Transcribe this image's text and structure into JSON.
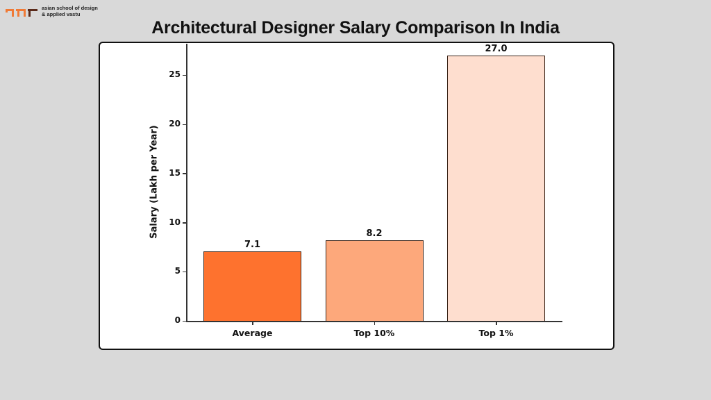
{
  "brand": {
    "line1": "asian school of design",
    "line2": "& applied vastu",
    "logo_colors": [
      "#f07a36",
      "#f07a36",
      "#5a2a1a"
    ]
  },
  "header": {
    "title": "Architectural Designer Salary Comparison In India"
  },
  "chart_data": {
    "type": "bar",
    "title": "Architectural Designer Salary Comparison In India",
    "categories": [
      "Average",
      "Top 10%",
      "Top 1%"
    ],
    "values": [
      7.1,
      8.2,
      27.0
    ],
    "value_labels": [
      "7.1",
      "8.2",
      "27.0"
    ],
    "colors": [
      "#FE722E",
      "#FDA87B",
      "#FEDECF"
    ],
    "xlabel": "",
    "ylabel": "Salary (Lakh per Year)",
    "ylim": [
      0,
      28.2
    ],
    "yticks": [
      0,
      5,
      10,
      15,
      20,
      25
    ],
    "ytick_labels": [
      "0",
      "5",
      "10",
      "15",
      "20",
      "25"
    ],
    "grid": false,
    "legend": null
  }
}
